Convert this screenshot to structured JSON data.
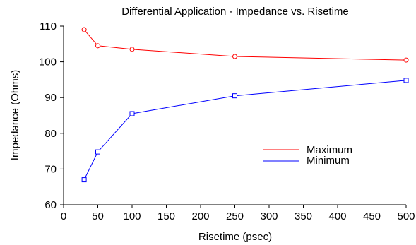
{
  "chart_data": {
    "type": "line",
    "title": "Differential Application - Impedance vs. Risetime",
    "xlabel": "Risetime (psec)",
    "ylabel": "Impedance (Ohms)",
    "xlim": [
      0,
      500
    ],
    "ylim": [
      60,
      110
    ],
    "xticks": [
      0,
      50,
      100,
      150,
      200,
      250,
      300,
      350,
      400,
      450,
      500
    ],
    "yticks": [
      60,
      70,
      80,
      90,
      100,
      110
    ],
    "grid": false,
    "legend_position": "lower-right",
    "series": [
      {
        "name": "Maximum",
        "color": "#ff0000",
        "marker": "circle",
        "x": [
          30,
          50,
          100,
          250,
          500
        ],
        "y": [
          109,
          104.5,
          103.5,
          101.5,
          100.5
        ]
      },
      {
        "name": "Minimum",
        "color": "#0000ff",
        "marker": "square",
        "x": [
          30,
          50,
          100,
          250,
          500
        ],
        "y": [
          67,
          74.8,
          85.5,
          90.5,
          94.8
        ]
      }
    ]
  }
}
